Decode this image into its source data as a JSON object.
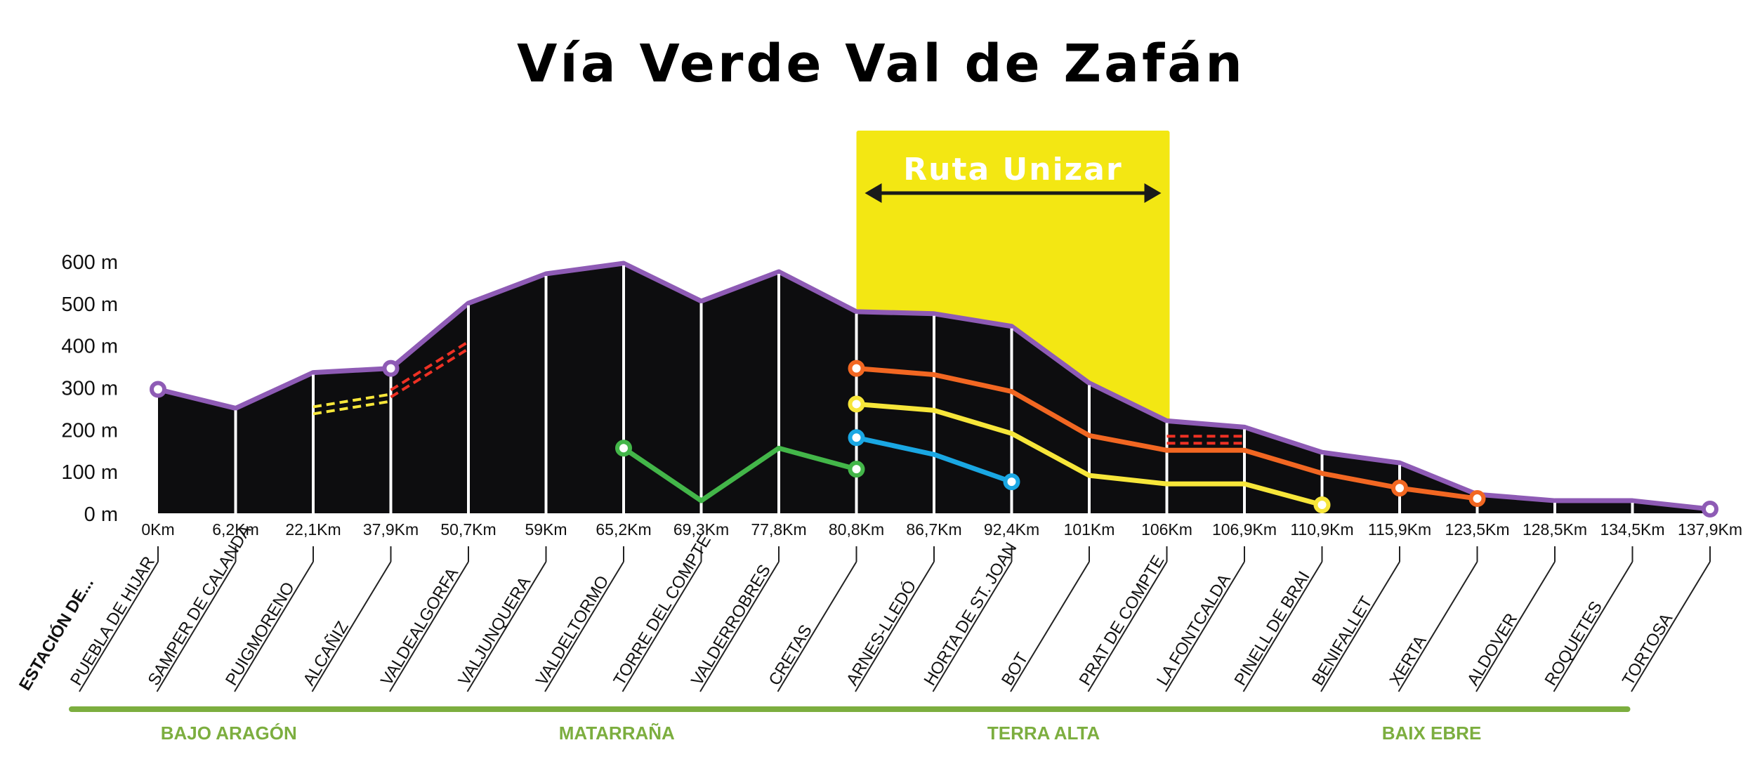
{
  "title": "Vía Verde Val de Zafán",
  "chart_data": {
    "type": "area",
    "title": "Vía Verde Val de Zafán",
    "xlabel": "",
    "ylabel": "",
    "ylim": [
      0,
      600
    ],
    "y_ticks": [
      "0 m",
      "100 m",
      "200 m",
      "300 m",
      "400 m",
      "500 m",
      "600 m"
    ],
    "x_tick_labels": [
      "0Km",
      "6,2Km",
      "22,1Km",
      "37,9Km",
      "50,7Km",
      "59Km",
      "65,2Km",
      "69,3Km",
      "77,8Km",
      "80,8Km",
      "86,7Km",
      "92,4Km",
      "101Km",
      "106Km",
      "106,9Km",
      "110,9Km",
      "115,9Km",
      "123,5Km",
      "128,5Km",
      "134,5Km",
      "137,9Km"
    ],
    "station_header": "ESTACIÓN DE...",
    "stations": [
      "PUEBLA DE HIJAR",
      "SAMPER DE CALANDA",
      "PUIGMORENO",
      "ALCAÑIZ",
      "VALDEALGORFA",
      "VALJUNQUERA",
      "VALDELTORMO",
      "TORRE DEL COMPTE",
      "VALDERROBRES",
      "CRETAS",
      "ARNES-LLEDÓ",
      "HORTA DE ST. JOAN",
      "BOT",
      "PRAT DE COMPTE",
      "LA FONTCALDA",
      "PINELL DE BRAI",
      "BENIFALLET",
      "XERTA",
      "ALDOVER",
      "ROQUETES",
      "TORTOSA"
    ],
    "elevation": [
      295,
      250,
      335,
      345,
      500,
      570,
      595,
      505,
      575,
      480,
      475,
      445,
      310,
      220,
      205,
      145,
      120,
      45,
      30,
      30,
      10
    ],
    "lines": [
      {
        "color": "#43b649",
        "points": [
          [
            6,
            155
          ],
          [
            7,
            30
          ],
          [
            8,
            155
          ],
          [
            9,
            105
          ]
        ]
      },
      {
        "color": "#1aa7e3",
        "points": [
          [
            9,
            180
          ],
          [
            10,
            140
          ],
          [
            11,
            75
          ]
        ]
      },
      {
        "color": "#f7e63a",
        "points": [
          [
            9,
            260
          ],
          [
            10,
            245
          ],
          [
            11,
            190
          ],
          [
            12,
            90
          ],
          [
            13,
            70
          ],
          [
            14,
            70
          ],
          [
            15,
            20
          ]
        ]
      },
      {
        "color": "#f26722",
        "points": [
          [
            9,
            345
          ],
          [
            10,
            330
          ],
          [
            11,
            290
          ],
          [
            12,
            185
          ],
          [
            13,
            150
          ],
          [
            14,
            150
          ],
          [
            15,
            95
          ],
          [
            16,
            60
          ],
          [
            17,
            35
          ]
        ]
      }
    ],
    "dashed_lines": [
      {
        "color": "#f7e63a",
        "points": [
          [
            2,
            245
          ],
          [
            3,
            275
          ]
        ]
      },
      {
        "color": "#ee3124",
        "points": [
          [
            3,
            285
          ],
          [
            4,
            400
          ]
        ]
      },
      {
        "color": "#ee3124",
        "points": [
          [
            13,
            175
          ],
          [
            14,
            175
          ]
        ]
      }
    ],
    "markers": [
      {
        "index": 0,
        "y": 295,
        "color": "#8e5bb5"
      },
      {
        "index": 3,
        "y": 345,
        "color": "#8e5bb5"
      },
      {
        "index": 20,
        "y": 10,
        "color": "#8e5bb5"
      },
      {
        "index": 6,
        "y": 155,
        "color": "#43b649"
      },
      {
        "index": 9,
        "y": 105,
        "color": "#43b649"
      },
      {
        "index": 9,
        "y": 180,
        "color": "#1aa7e3"
      },
      {
        "index": 11,
        "y": 75,
        "color": "#1aa7e3"
      },
      {
        "index": 9,
        "y": 260,
        "color": "#f7e63a"
      },
      {
        "index": 15,
        "y": 20,
        "color": "#f7e63a"
      },
      {
        "index": 9,
        "y": 345,
        "color": "#f26722"
      },
      {
        "index": 16,
        "y": 60,
        "color": "#f26722"
      },
      {
        "index": 17,
        "y": 35,
        "color": "#f26722"
      }
    ],
    "highlight": {
      "label": "Ruta Unizar",
      "from_index": 9,
      "to_index": 13,
      "color": "#f3e713"
    },
    "regions": [
      {
        "label": "BAJO ARAGÓN",
        "from_index": 0,
        "to_index": 3
      },
      {
        "label": "MATARRAÑA",
        "from_index": 4,
        "to_index": 9
      },
      {
        "label": "TERRA ALTA",
        "from_index": 10,
        "to_index": 14
      },
      {
        "label": "BAIX EBRE",
        "from_index": 15,
        "to_index": 19
      }
    ],
    "colors": {
      "fill": "#0d0d0f",
      "outline": "#8e5bb5",
      "region": "#7cae3f",
      "grid": "#ffffff"
    },
    "grid": true
  }
}
